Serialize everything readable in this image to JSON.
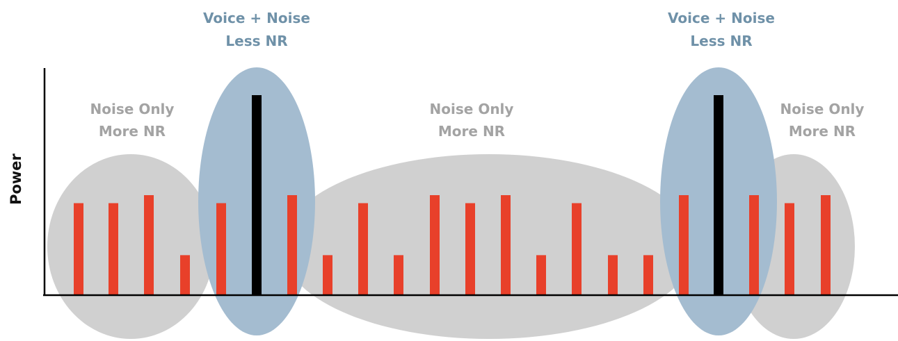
{
  "axis": {
    "y_label": "Power"
  },
  "colors": {
    "noise_bar": "#e8402a",
    "voice_bar": "#000000",
    "noise_region": "#d0d0d0",
    "voice_region": "#a4bcd0",
    "voice_text": "#6f91a8",
    "noise_text": "#a3a3a3",
    "axis_line": "#000000"
  },
  "regions": [
    {
      "kind": "noise",
      "line1": "Noise Only",
      "line2": "More NR"
    },
    {
      "kind": "voice",
      "line1": "Voice + Noise",
      "line2": "Less NR"
    },
    {
      "kind": "noise",
      "line1": "Noise Only",
      "line2": "More NR"
    },
    {
      "kind": "voice",
      "line1": "Voice + Noise",
      "line2": "Less NR"
    },
    {
      "kind": "noise",
      "line1": "Noise Only",
      "line2": "More NR"
    }
  ],
  "chart_data": {
    "type": "bar",
    "ylabel": "Power",
    "xlabel": "",
    "bars": [
      {
        "kind": "noise",
        "power": 0.46
      },
      {
        "kind": "noise",
        "power": 0.46
      },
      {
        "kind": "noise",
        "power": 0.5
      },
      {
        "kind": "noise",
        "power": 0.2
      },
      {
        "kind": "noise",
        "power": 0.46
      },
      {
        "kind": "voice",
        "power": 1.0
      },
      {
        "kind": "noise",
        "power": 0.5
      },
      {
        "kind": "noise",
        "power": 0.2
      },
      {
        "kind": "noise",
        "power": 0.46
      },
      {
        "kind": "noise",
        "power": 0.2
      },
      {
        "kind": "noise",
        "power": 0.5
      },
      {
        "kind": "noise",
        "power": 0.46
      },
      {
        "kind": "noise",
        "power": 0.5
      },
      {
        "kind": "noise",
        "power": 0.2
      },
      {
        "kind": "noise",
        "power": 0.46
      },
      {
        "kind": "noise",
        "power": 0.2
      },
      {
        "kind": "noise",
        "power": 0.2
      },
      {
        "kind": "noise",
        "power": 0.5
      },
      {
        "kind": "voice",
        "power": 1.0
      },
      {
        "kind": "noise",
        "power": 0.5
      },
      {
        "kind": "noise",
        "power": 0.46
      },
      {
        "kind": "noise",
        "power": 0.5
      }
    ]
  }
}
